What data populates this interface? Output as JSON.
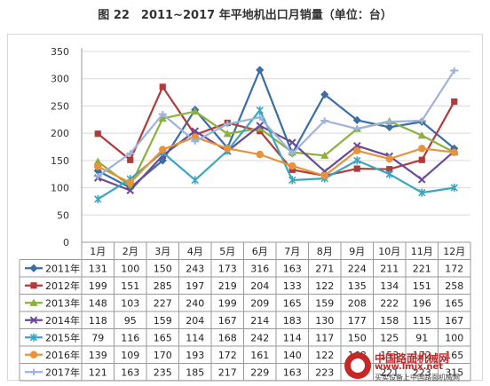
{
  "title": "图 22　2011~2017 年平地机出口月销量（单位：台）",
  "watermark": {
    "name": "中国路面机械网",
    "url": "www.lmjx.net",
    "tagline": "买卖设备上中国路面机械网"
  },
  "chart_data": {
    "type": "line",
    "title": "图 22　2011~2017 年平地机出口月销量（单位：台）",
    "categories": [
      "1月",
      "2月",
      "3月",
      "4月",
      "5月",
      "6月",
      "7月",
      "8月",
      "9月",
      "10月",
      "11月",
      "12月"
    ],
    "ylim": [
      0,
      350
    ],
    "yticks": [
      0,
      50,
      100,
      150,
      200,
      250,
      300,
      350
    ],
    "grid": true,
    "legend": "data-table",
    "series": [
      {
        "name": "2011年",
        "color": "#3a6ea5",
        "marker": "diamond",
        "values": [
          131,
          100,
          150,
          243,
          173,
          316,
          163,
          271,
          224,
          211,
          221,
          172
        ]
      },
      {
        "name": "2012年",
        "color": "#b23a3a",
        "marker": "square",
        "values": [
          199,
          151,
          285,
          197,
          219,
          204,
          133,
          122,
          135,
          134,
          151,
          258
        ]
      },
      {
        "name": "2013年",
        "color": "#8cb03c",
        "marker": "triangle",
        "values": [
          148,
          103,
          227,
          240,
          199,
          209,
          165,
          159,
          208,
          222,
          196,
          165
        ]
      },
      {
        "name": "2014年",
        "color": "#6a4a96",
        "marker": "x",
        "values": [
          118,
          95,
          159,
          204,
          167,
          214,
          183,
          130,
          177,
          158,
          115,
          167
        ]
      },
      {
        "name": "2015年",
        "color": "#3aa6c0",
        "marker": "star",
        "values": [
          79,
          116,
          165,
          114,
          168,
          242,
          114,
          117,
          150,
          125,
          91,
          100
        ]
      },
      {
        "name": "2016年",
        "color": "#e8923a",
        "marker": "circle",
        "values": [
          139,
          109,
          170,
          193,
          172,
          161,
          140,
          122,
          168,
          153,
          172,
          165
        ]
      },
      {
        "name": "2017年",
        "color": "#9fb2dc",
        "marker": "plus",
        "values": [
          121,
          163,
          235,
          185,
          217,
          229,
          163,
          223,
          208,
          221,
          223,
          315
        ]
      }
    ]
  }
}
